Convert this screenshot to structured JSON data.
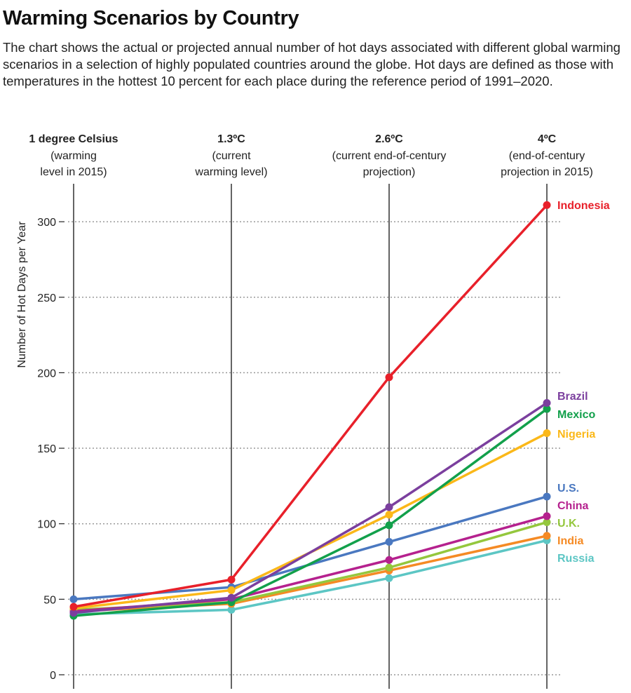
{
  "chart_data": {
    "type": "line",
    "title": "Warming Scenarios by Country",
    "subtitle": "The chart shows the actual or projected annual number of hot days associated with different global warming scenarios in a selection of highly populated countries around the globe. Hot days are defined as those with temperatures in the hottest 10 percent for each place during the reference period of 1991–2020.",
    "ylabel": "Number of Hot Days per Year",
    "ylim": [
      0,
      320
    ],
    "yticks": [
      "0",
      "50",
      "100",
      "150",
      "200",
      "250",
      "300"
    ],
    "grid": true,
    "categories": [
      {
        "title": "1 degree Celsius",
        "lines": [
          "(warming",
          "level in 2015)"
        ]
      },
      {
        "title": "1.3ºC",
        "lines": [
          "(current",
          "warming level)"
        ]
      },
      {
        "title": "2.6ºC",
        "lines": [
          "(current end-of-century",
          "projection)"
        ]
      },
      {
        "title": "4ºC",
        "lines": [
          "(end-of-century",
          "projection in 2015)"
        ]
      }
    ],
    "series": [
      {
        "name": "Russia",
        "color": "#5cc6c4",
        "values": [
          40,
          43,
          64,
          89
        ]
      },
      {
        "name": "India",
        "color": "#f58a24",
        "values": [
          42,
          47,
          69,
          92
        ]
      },
      {
        "name": "U.K.",
        "color": "#94c73d",
        "values": [
          43,
          48,
          71,
          101
        ]
      },
      {
        "name": "China",
        "color": "#b5218e",
        "values": [
          42,
          50,
          76,
          105
        ]
      },
      {
        "name": "U.S.",
        "color": "#4a78c0",
        "values": [
          50,
          58,
          88,
          118
        ]
      },
      {
        "name": "Nigeria",
        "color": "#fbb819",
        "values": [
          44,
          56,
          106,
          160
        ]
      },
      {
        "name": "Mexico",
        "color": "#12a04b",
        "values": [
          39,
          48,
          99,
          176
        ]
      },
      {
        "name": "Brazil",
        "color": "#7b3f9e",
        "values": [
          41,
          51,
          111,
          180
        ]
      },
      {
        "name": "Indonesia",
        "color": "#e8202a",
        "values": [
          45,
          63,
          197,
          311
        ]
      }
    ]
  }
}
